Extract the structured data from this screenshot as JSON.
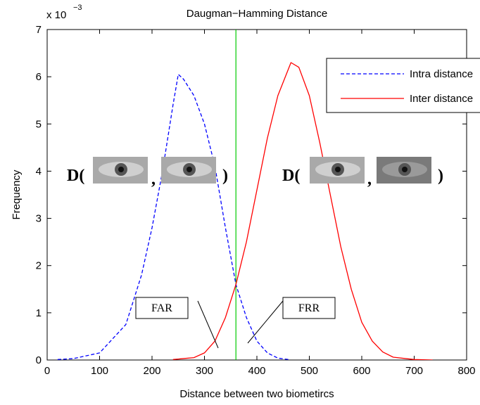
{
  "chart_data": {
    "type": "line",
    "title": "Daugman−Hamming Distance",
    "x_label": "Distance between two biometircs",
    "y_label": "Frequency",
    "y_scale_base": "x 10",
    "y_scale_exponent": "−3",
    "xlim": [
      0,
      800
    ],
    "xticks": [
      0,
      100,
      200,
      300,
      400,
      500,
      600,
      700,
      800
    ],
    "ylim": [
      0,
      7
    ],
    "yticks": [
      0,
      1,
      2,
      3,
      4,
      5,
      6,
      7
    ],
    "threshold": {
      "x": 360,
      "color": "#00cc00"
    },
    "series": [
      {
        "name": "Intra distance",
        "color": "#0000ff",
        "dash": true,
        "x": [
          20,
          50,
          100,
          150,
          180,
          200,
          220,
          240,
          250,
          260,
          280,
          300,
          320,
          340,
          360,
          380,
          400,
          420,
          440,
          460
        ],
        "values": [
          0.01,
          0.03,
          0.15,
          0.75,
          1.8,
          2.8,
          4.0,
          5.4,
          6.05,
          5.95,
          5.6,
          5.0,
          4.1,
          2.8,
          1.6,
          0.9,
          0.4,
          0.15,
          0.04,
          0.01
        ]
      },
      {
        "name": "Inter distance",
        "color": "#ff0000",
        "dash": false,
        "x": [
          240,
          280,
          300,
          320,
          340,
          360,
          380,
          400,
          420,
          440,
          465,
          480,
          500,
          520,
          540,
          560,
          580,
          600,
          620,
          640,
          660,
          700,
          735
        ],
        "values": [
          0.01,
          0.05,
          0.15,
          0.4,
          0.9,
          1.6,
          2.5,
          3.6,
          4.7,
          5.6,
          6.3,
          6.2,
          5.6,
          4.6,
          3.5,
          2.4,
          1.5,
          0.8,
          0.4,
          0.17,
          0.06,
          0.01,
          0
        ]
      }
    ],
    "annotations": [
      "FAR",
      "FRR"
    ],
    "equations": [
      [
        "D(",
        ",",
        ")"
      ],
      [
        "D(",
        ",",
        ")"
      ]
    ]
  }
}
